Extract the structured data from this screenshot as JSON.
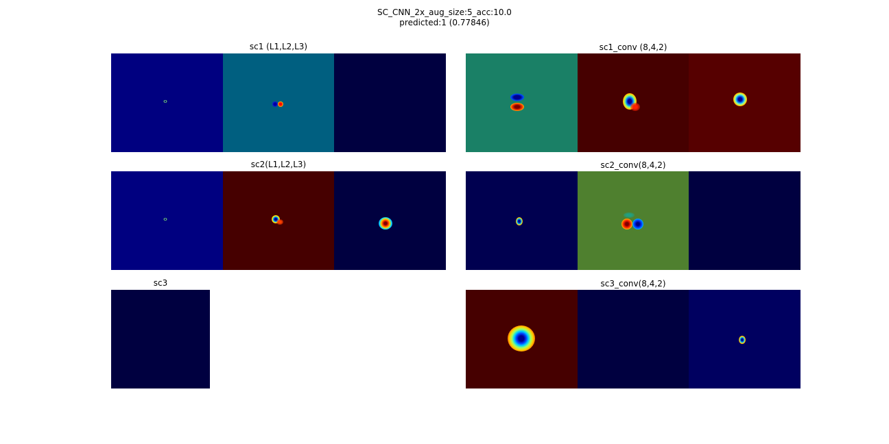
{
  "figure": {
    "title_line1": "SC_CNN_2x_aug_size:5_acc:10.0",
    "title_line2": "predicted:1 (0.77846)"
  },
  "colors": {
    "jet_deep_blue": "#000080",
    "jet_navy_dark": "#000040",
    "jet_dark_red": "#800000",
    "jet_blue": "#0000ff",
    "jet_cyan": "#00ffff",
    "jet_yellow": "#ffff00",
    "jet_red": "#ff0000"
  },
  "chart_data": {
    "type": "heatmap",
    "colormap": "jet",
    "axes_visible": false,
    "panels": [
      {
        "id": "sc1",
        "title": "sc1 (L1,L2,L3)",
        "tiles": [
          {
            "background": "#000080",
            "feature": "tiny ring"
          },
          {
            "background": "#005f80",
            "feature": "blue/red dipole"
          },
          {
            "background": "#000040",
            "feature": "none"
          }
        ]
      },
      {
        "id": "sc1_conv",
        "title": "sc1_conv (8,4,2)",
        "tiles": [
          {
            "background": "#1a8066",
            "feature": "vertical dipole blue over red"
          },
          {
            "background": "#460000",
            "feature": "blue center with yellow ring"
          },
          {
            "background": "#560000",
            "feature": "blue center with yellow ring"
          }
        ]
      },
      {
        "id": "sc2",
        "title": "sc2(L1,L2,L3)",
        "tiles": [
          {
            "background": "#000080",
            "feature": "tiny ring"
          },
          {
            "background": "#460000",
            "feature": "small ring"
          },
          {
            "background": "#000040",
            "feature": "red center with yellow/cyan ring"
          }
        ]
      },
      {
        "id": "sc2_conv",
        "title": "sc2_conv(8,4,2)",
        "tiles": [
          {
            "background": "#000050",
            "feature": "small ring"
          },
          {
            "background": "#4f802f",
            "feature": "horizontal dipole red and blue"
          },
          {
            "background": "#000040",
            "feature": "none"
          }
        ]
      },
      {
        "id": "sc3",
        "title": "sc3",
        "tiles": [
          {
            "background": "#000040",
            "feature": "none"
          }
        ]
      },
      {
        "id": "sc3_conv",
        "title": "sc3_conv(8,4,2)",
        "tiles": [
          {
            "background": "#460000",
            "feature": "large blue center with yellow/red ring"
          },
          {
            "background": "#000040",
            "feature": "none"
          },
          {
            "background": "#000060",
            "feature": "small ring"
          }
        ]
      }
    ]
  }
}
